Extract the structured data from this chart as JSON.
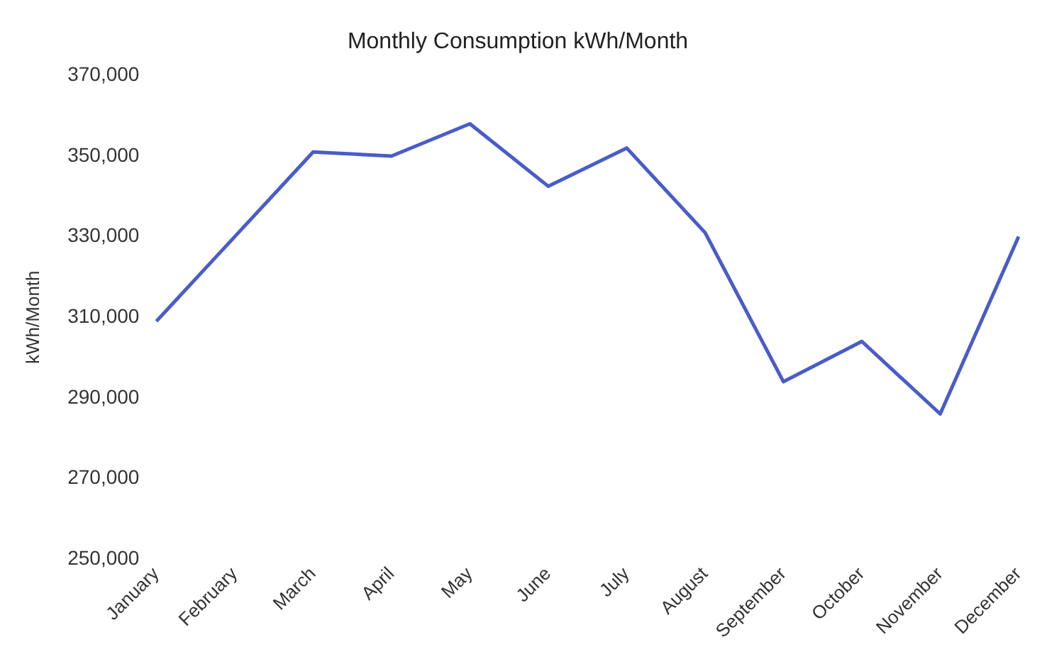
{
  "chart_data": {
    "type": "line",
    "title": "Monthly Consumption kWh/Month",
    "ylabel": "kWh/Month",
    "categories": [
      "January",
      "February",
      "March",
      "April",
      "May",
      "June",
      "July",
      "August",
      "September",
      "October",
      "November",
      "December"
    ],
    "series": [
      {
        "color": "#4a5cc8",
        "values": [
          309000,
          330000,
          351000,
          350000,
          358000,
          342500,
          352000,
          331000,
          294000,
          304000,
          286000,
          330000
        ]
      }
    ],
    "ylim": [
      250000,
      370000
    ],
    "yticks": [
      {
        "value": 250000,
        "label": "250,000"
      },
      {
        "value": 270000,
        "label": "270,000"
      },
      {
        "value": 290000,
        "label": "290,000"
      },
      {
        "value": 310000,
        "label": "310,000"
      },
      {
        "value": 330000,
        "label": "330,000"
      },
      {
        "value": 350000,
        "label": "350,000"
      },
      {
        "value": 370000,
        "label": "370,000"
      }
    ],
    "grid": false,
    "legend": false,
    "marker": "none",
    "line_style": "solid"
  }
}
